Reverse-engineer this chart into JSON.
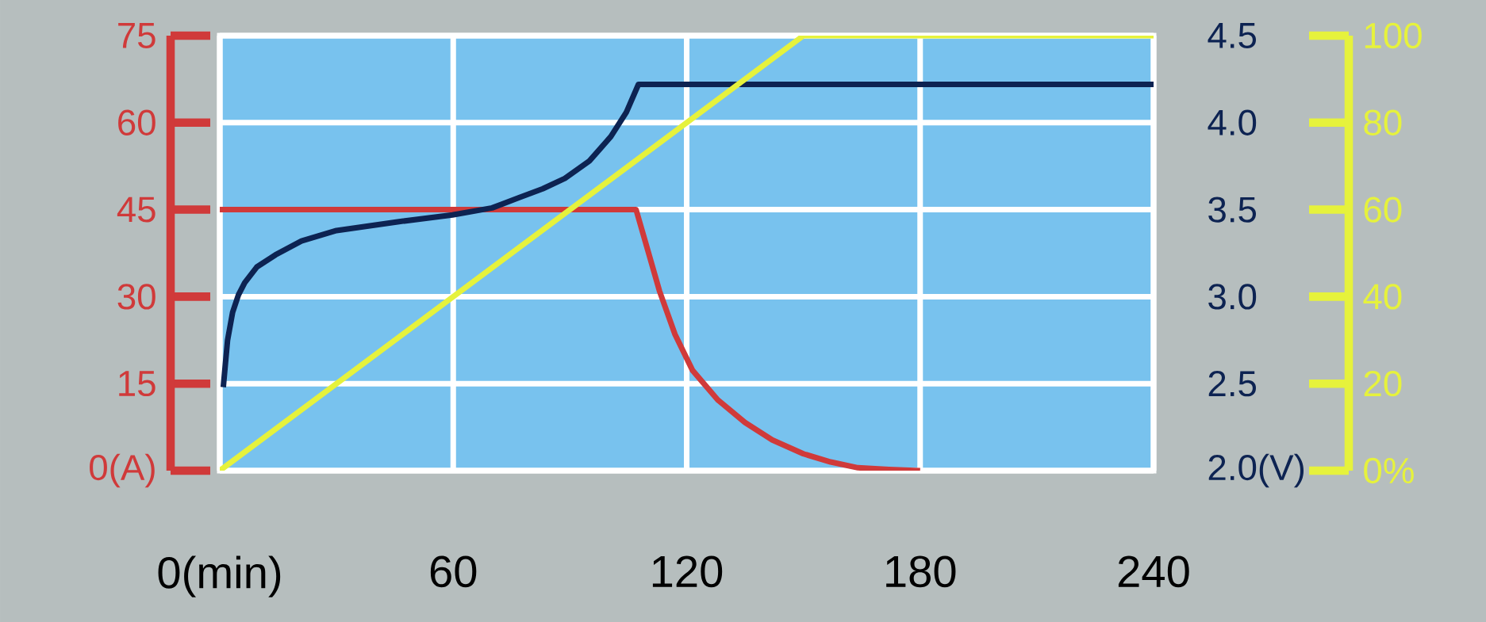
{
  "chart_data": {
    "type": "line",
    "xlim": [
      0,
      240
    ],
    "xticks": [
      {
        "value": 0,
        "label": "0(min)"
      },
      60,
      120,
      180,
      240
    ],
    "ylim": [
      0,
      75
    ],
    "yticks": [
      {
        "value": 0,
        "label": "0(A)"
      },
      15,
      30,
      45,
      60,
      75
    ],
    "y2lim": [
      2.0,
      4.5
    ],
    "y2ticks": [
      {
        "value": 2.0,
        "label": "2.0(V)"
      },
      2.5,
      {
        "value": 3.0,
        "label": "3.0"
      },
      3.5,
      {
        "value": 4.0,
        "label": "4.0"
      },
      4.5
    ],
    "y3lim": [
      0,
      100
    ],
    "y3ticks": [
      {
        "value": 0,
        "label": "0%"
      },
      20,
      40,
      60,
      80,
      100
    ],
    "grid": true,
    "series": [
      {
        "color": "#d03a3a",
        "axis": "y",
        "x": [
          0,
          107,
          110,
          113,
          117,
          121.5,
          128,
          135,
          142,
          150,
          157,
          164,
          172,
          180
        ],
        "values": [
          45,
          45,
          38,
          31,
          23.5,
          17.3,
          12.2,
          8.3,
          5.3,
          2.9,
          1.5,
          0.5,
          0.2,
          0
        ]
      },
      {
        "color": "#0d2352",
        "axis": "y2",
        "x": [
          0.9,
          2,
          3.3,
          4.8,
          6.4,
          9.5,
          14.3,
          21,
          30,
          45.7,
          59.8,
          70,
          77,
          83,
          88.7,
          95,
          100.5,
          104.5,
          107.6,
          240
        ],
        "values": [
          2.48,
          2.75,
          2.91,
          3.01,
          3.08,
          3.17,
          3.24,
          3.32,
          3.38,
          3.43,
          3.47,
          3.51,
          3.57,
          3.62,
          3.68,
          3.78,
          3.92,
          4.06,
          4.22,
          4.22
        ]
      },
      {
        "color": "#e6f23c",
        "axis": "y3",
        "x": [
          0,
          150,
          240
        ],
        "values": [
          0,
          100,
          100
        ]
      }
    ]
  }
}
